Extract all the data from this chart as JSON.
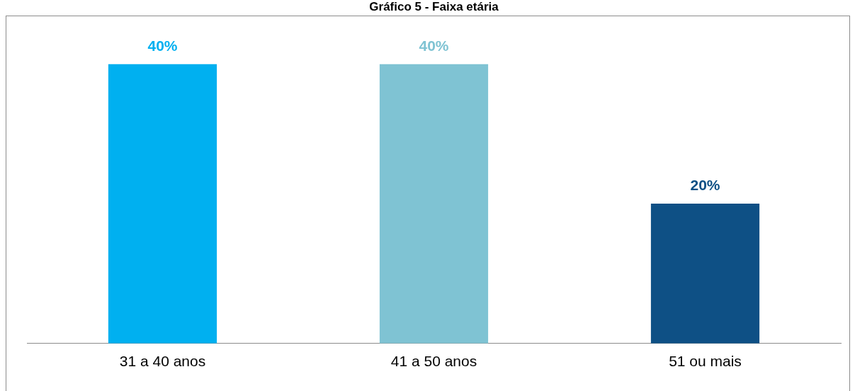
{
  "chart_data": {
    "type": "bar",
    "title": "Gráfico 5 - Faixa etária",
    "categories": [
      "31 a 40 anos",
      "41 a 50 anos",
      "51 ou mais"
    ],
    "values": [
      40,
      40,
      20
    ],
    "colors": [
      "#00b0f0",
      "#7fc3d3",
      "#0e5085"
    ],
    "data_labels": true,
    "value_labels": [
      "40%",
      "40%",
      "20%"
    ],
    "grid": false,
    "legend": false
  }
}
